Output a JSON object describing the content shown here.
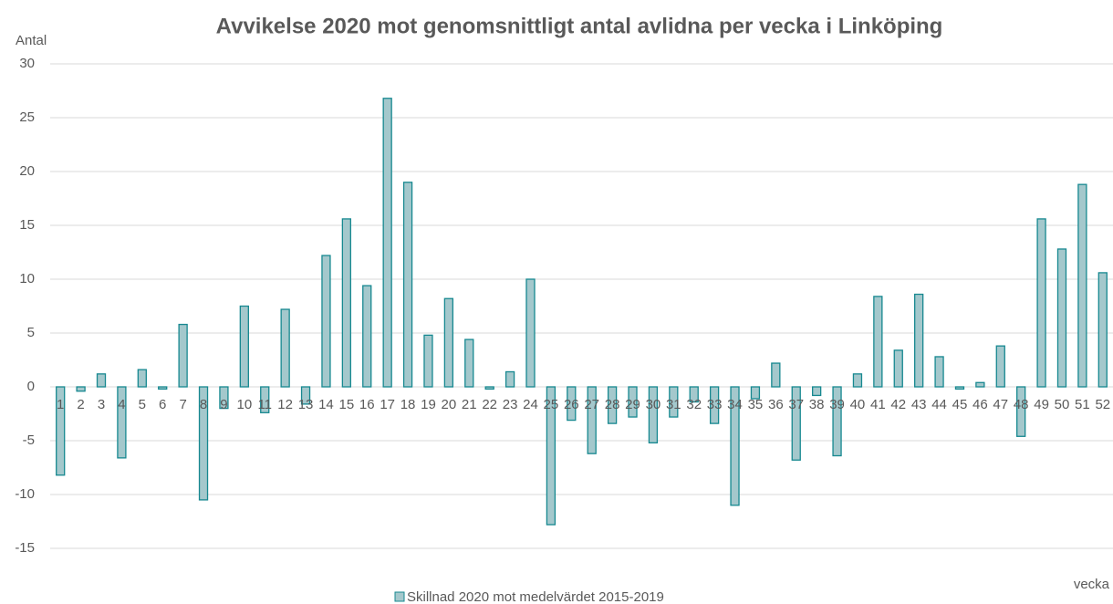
{
  "chart_data": {
    "type": "bar",
    "title": "Avvikelse 2020 mot genomsnittligt antal avlidna per vecka i Linköping",
    "y_label": "Antal",
    "x_label": "vecka",
    "categories": [
      "1",
      "2",
      "3",
      "4",
      "5",
      "6",
      "7",
      "8",
      "9",
      "10",
      "11",
      "12",
      "13",
      "14",
      "15",
      "16",
      "17",
      "18",
      "19",
      "20",
      "21",
      "22",
      "23",
      "24",
      "25",
      "26",
      "27",
      "28",
      "29",
      "30",
      "31",
      "32",
      "33",
      "34",
      "35",
      "36",
      "37",
      "38",
      "39",
      "40",
      "41",
      "42",
      "43",
      "44",
      "45",
      "46",
      "47",
      "48",
      "49",
      "50",
      "51",
      "52"
    ],
    "series": [
      {
        "name": "Skillnad 2020 mot medelvärdet 2015-2019",
        "color": "#a4c8cc",
        "edge_color": "#168890",
        "values": [
          -8.2,
          -0.4,
          1.2,
          -6.6,
          1.6,
          -0.2,
          5.8,
          -10.5,
          -2.0,
          7.5,
          -2.4,
          7.2,
          -1.6,
          12.2,
          15.6,
          9.4,
          26.8,
          19.0,
          4.8,
          8.2,
          4.4,
          -0.2,
          1.4,
          10.0,
          -12.8,
          -3.1,
          -6.2,
          -3.4,
          -2.8,
          -5.2,
          -2.8,
          -1.4,
          -3.4,
          -11.0,
          -1.1,
          2.2,
          -6.8,
          -0.8,
          -6.4,
          1.2,
          8.4,
          3.4,
          8.6,
          2.8,
          -0.2,
          0.4,
          3.8,
          -4.6,
          15.6,
          12.8,
          18.8,
          10.6
        ]
      }
    ],
    "ylim": [
      -15,
      30
    ],
    "yticks": [
      -15,
      -10,
      -5,
      0,
      5,
      10,
      15,
      20,
      25,
      30
    ],
    "grid": true,
    "legend": "bottom"
  }
}
